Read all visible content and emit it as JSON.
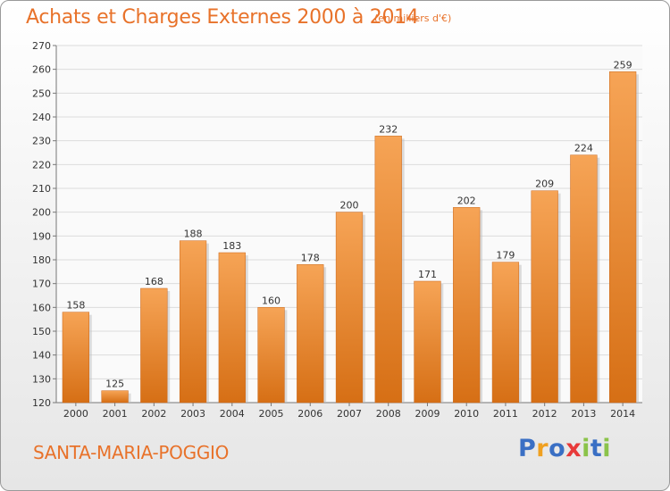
{
  "chart_data": {
    "type": "bar",
    "title": "Achats et Charges Externes 2000 à 2014",
    "subtitle": "(en milliers d'€)",
    "categories": [
      "2000",
      "2001",
      "2002",
      "2003",
      "2004",
      "2005",
      "2006",
      "2007",
      "2008",
      "2009",
      "2010",
      "2011",
      "2012",
      "2013",
      "2014"
    ],
    "values": [
      158,
      125,
      168,
      188,
      183,
      160,
      178,
      200,
      232,
      171,
      202,
      179,
      209,
      224,
      259
    ],
    "data_labels": [
      "158",
      "125",
      "168",
      "188",
      "183",
      "160",
      "178",
      "200",
      "232",
      "171",
      "202",
      "179",
      "209",
      "224",
      "259"
    ],
    "ylim": [
      120,
      270
    ],
    "yticks": [
      120,
      130,
      140,
      150,
      160,
      170,
      180,
      190,
      200,
      210,
      220,
      230,
      240,
      250,
      260,
      270
    ],
    "grid": true,
    "bar_color": "#e8822e",
    "xlabel": "",
    "ylabel": ""
  },
  "footer": {
    "place": "SANTA-MARIA-POGGIO",
    "logo_letters": [
      "P",
      "r",
      "o",
      "x",
      "i",
      "t",
      "i"
    ],
    "logo_colors": [
      "#3a6fc4",
      "#f0a020",
      "#3a6fc4",
      "#e83a3a",
      "#8bc34a",
      "#3a6fc4",
      "#8bc34a"
    ]
  },
  "colors": {
    "accent": "#e8722a"
  }
}
